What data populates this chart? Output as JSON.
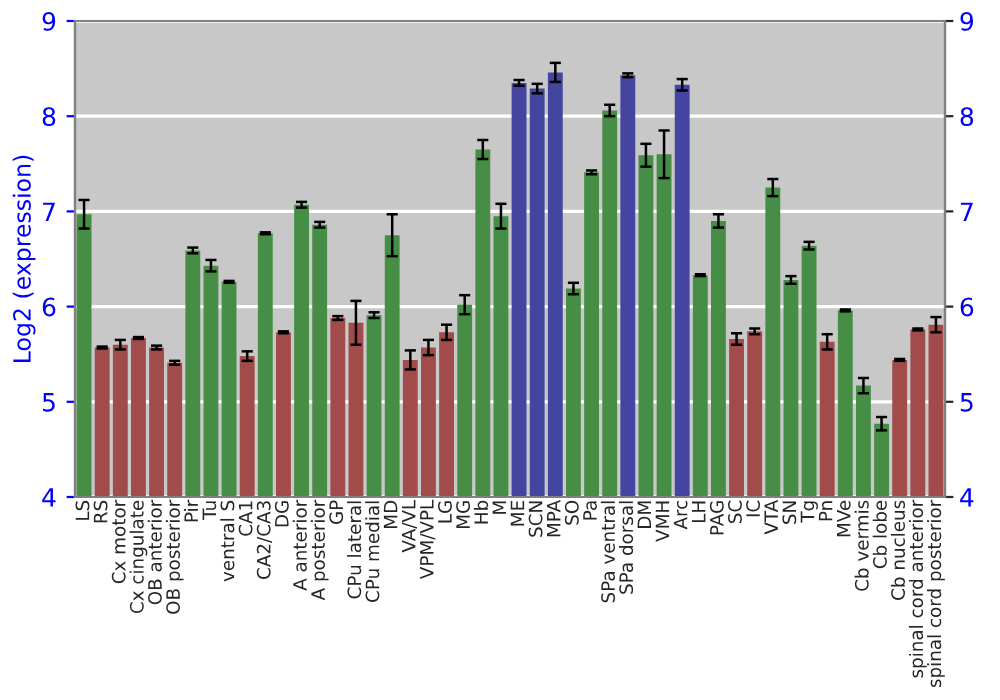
{
  "chart_data": {
    "type": "bar",
    "ylabel": "Log2 (expression)",
    "categories": [
      "LS",
      "RS",
      "Cx motor",
      "Cx cingulate",
      "OB anterior",
      "OB posterior",
      "Pir",
      "Tu",
      "ventral S",
      "CA1",
      "CA2/CA3",
      "DG",
      "A anterior",
      "A posterior",
      "GP",
      "CPu lateral",
      "CPu medial",
      "MD",
      "VA/VL",
      "VPM/VPL",
      "LG",
      "MG",
      "Hb",
      "M",
      "ME",
      "SCN",
      "MPA",
      "SO",
      "Pa",
      "SPa ventral",
      "SPa dorsal",
      "DM",
      "VMH",
      "Arc",
      "LH",
      "PAG",
      "SC",
      "IC",
      "VTA",
      "SN",
      "Tg",
      "Pn",
      "MVe",
      "Cb vermis",
      "Cb lobe",
      "Cb nucleus",
      "spinal cord anterior",
      "spinal cord posterior"
    ],
    "values": [
      6.97,
      5.57,
      5.6,
      5.67,
      5.57,
      5.41,
      6.59,
      6.43,
      6.26,
      5.48,
      6.77,
      5.73,
      7.07,
      6.86,
      5.88,
      5.83,
      5.91,
      6.75,
      5.44,
      5.57,
      5.73,
      6.02,
      7.65,
      6.95,
      8.35,
      8.29,
      8.46,
      6.19,
      7.41,
      8.06,
      8.43,
      7.59,
      7.6,
      8.33,
      6.33,
      6.9,
      5.66,
      5.74,
      7.25,
      6.28,
      6.64,
      5.63,
      5.96,
      5.17,
      4.77,
      5.44,
      5.76,
      5.81
    ],
    "errors": [
      0.15,
      0.01,
      0.05,
      0.01,
      0.02,
      0.02,
      0.03,
      0.06,
      0.01,
      0.05,
      0.01,
      0.01,
      0.03,
      0.03,
      0.02,
      0.23,
      0.03,
      0.22,
      0.1,
      0.08,
      0.08,
      0.1,
      0.1,
      0.13,
      0.03,
      0.05,
      0.1,
      0.06,
      0.02,
      0.06,
      0.02,
      0.12,
      0.25,
      0.06,
      0.01,
      0.07,
      0.06,
      0.03,
      0.09,
      0.04,
      0.04,
      0.08,
      0.01,
      0.08,
      0.07,
      0.01,
      0.01,
      0.08
    ],
    "colors": [
      "#3a9a3a",
      "#b03c3c",
      "#b03c3c",
      "#b03c3c",
      "#b03c3c",
      "#b03c3c",
      "#3a9a3a",
      "#3a9a3a",
      "#3a9a3a",
      "#b03c3c",
      "#3a9a3a",
      "#b03c3c",
      "#3a9a3a",
      "#3a9a3a",
      "#b03c3c",
      "#b03c3c",
      "#3a9a3a",
      "#3a9a3a",
      "#b03c3c",
      "#b03c3c",
      "#b03c3c",
      "#3a9a3a",
      "#3a9a3a",
      "#3a9a3a",
      "#3535b0",
      "#3535b0",
      "#3535b0",
      "#3a9a3a",
      "#3a9a3a",
      "#3a9a3a",
      "#3535b0",
      "#3a9a3a",
      "#3a9a3a",
      "#3535b0",
      "#3a9a3a",
      "#3a9a3a",
      "#b03c3c",
      "#b03c3c",
      "#3a9a3a",
      "#3a9a3a",
      "#3a9a3a",
      "#b03c3c",
      "#3a9a3a",
      "#3a9a3a",
      "#3a9a3a",
      "#b03c3c",
      "#b03c3c",
      "#b03c3c"
    ],
    "ylim": [
      4,
      9
    ],
    "yticks": [
      4,
      5,
      6,
      7,
      8,
      9
    ],
    "y2lim": [
      4,
      9
    ],
    "y2ticks": [
      4,
      5,
      6,
      7,
      8,
      9
    ],
    "grid": "y",
    "legend": false
  }
}
